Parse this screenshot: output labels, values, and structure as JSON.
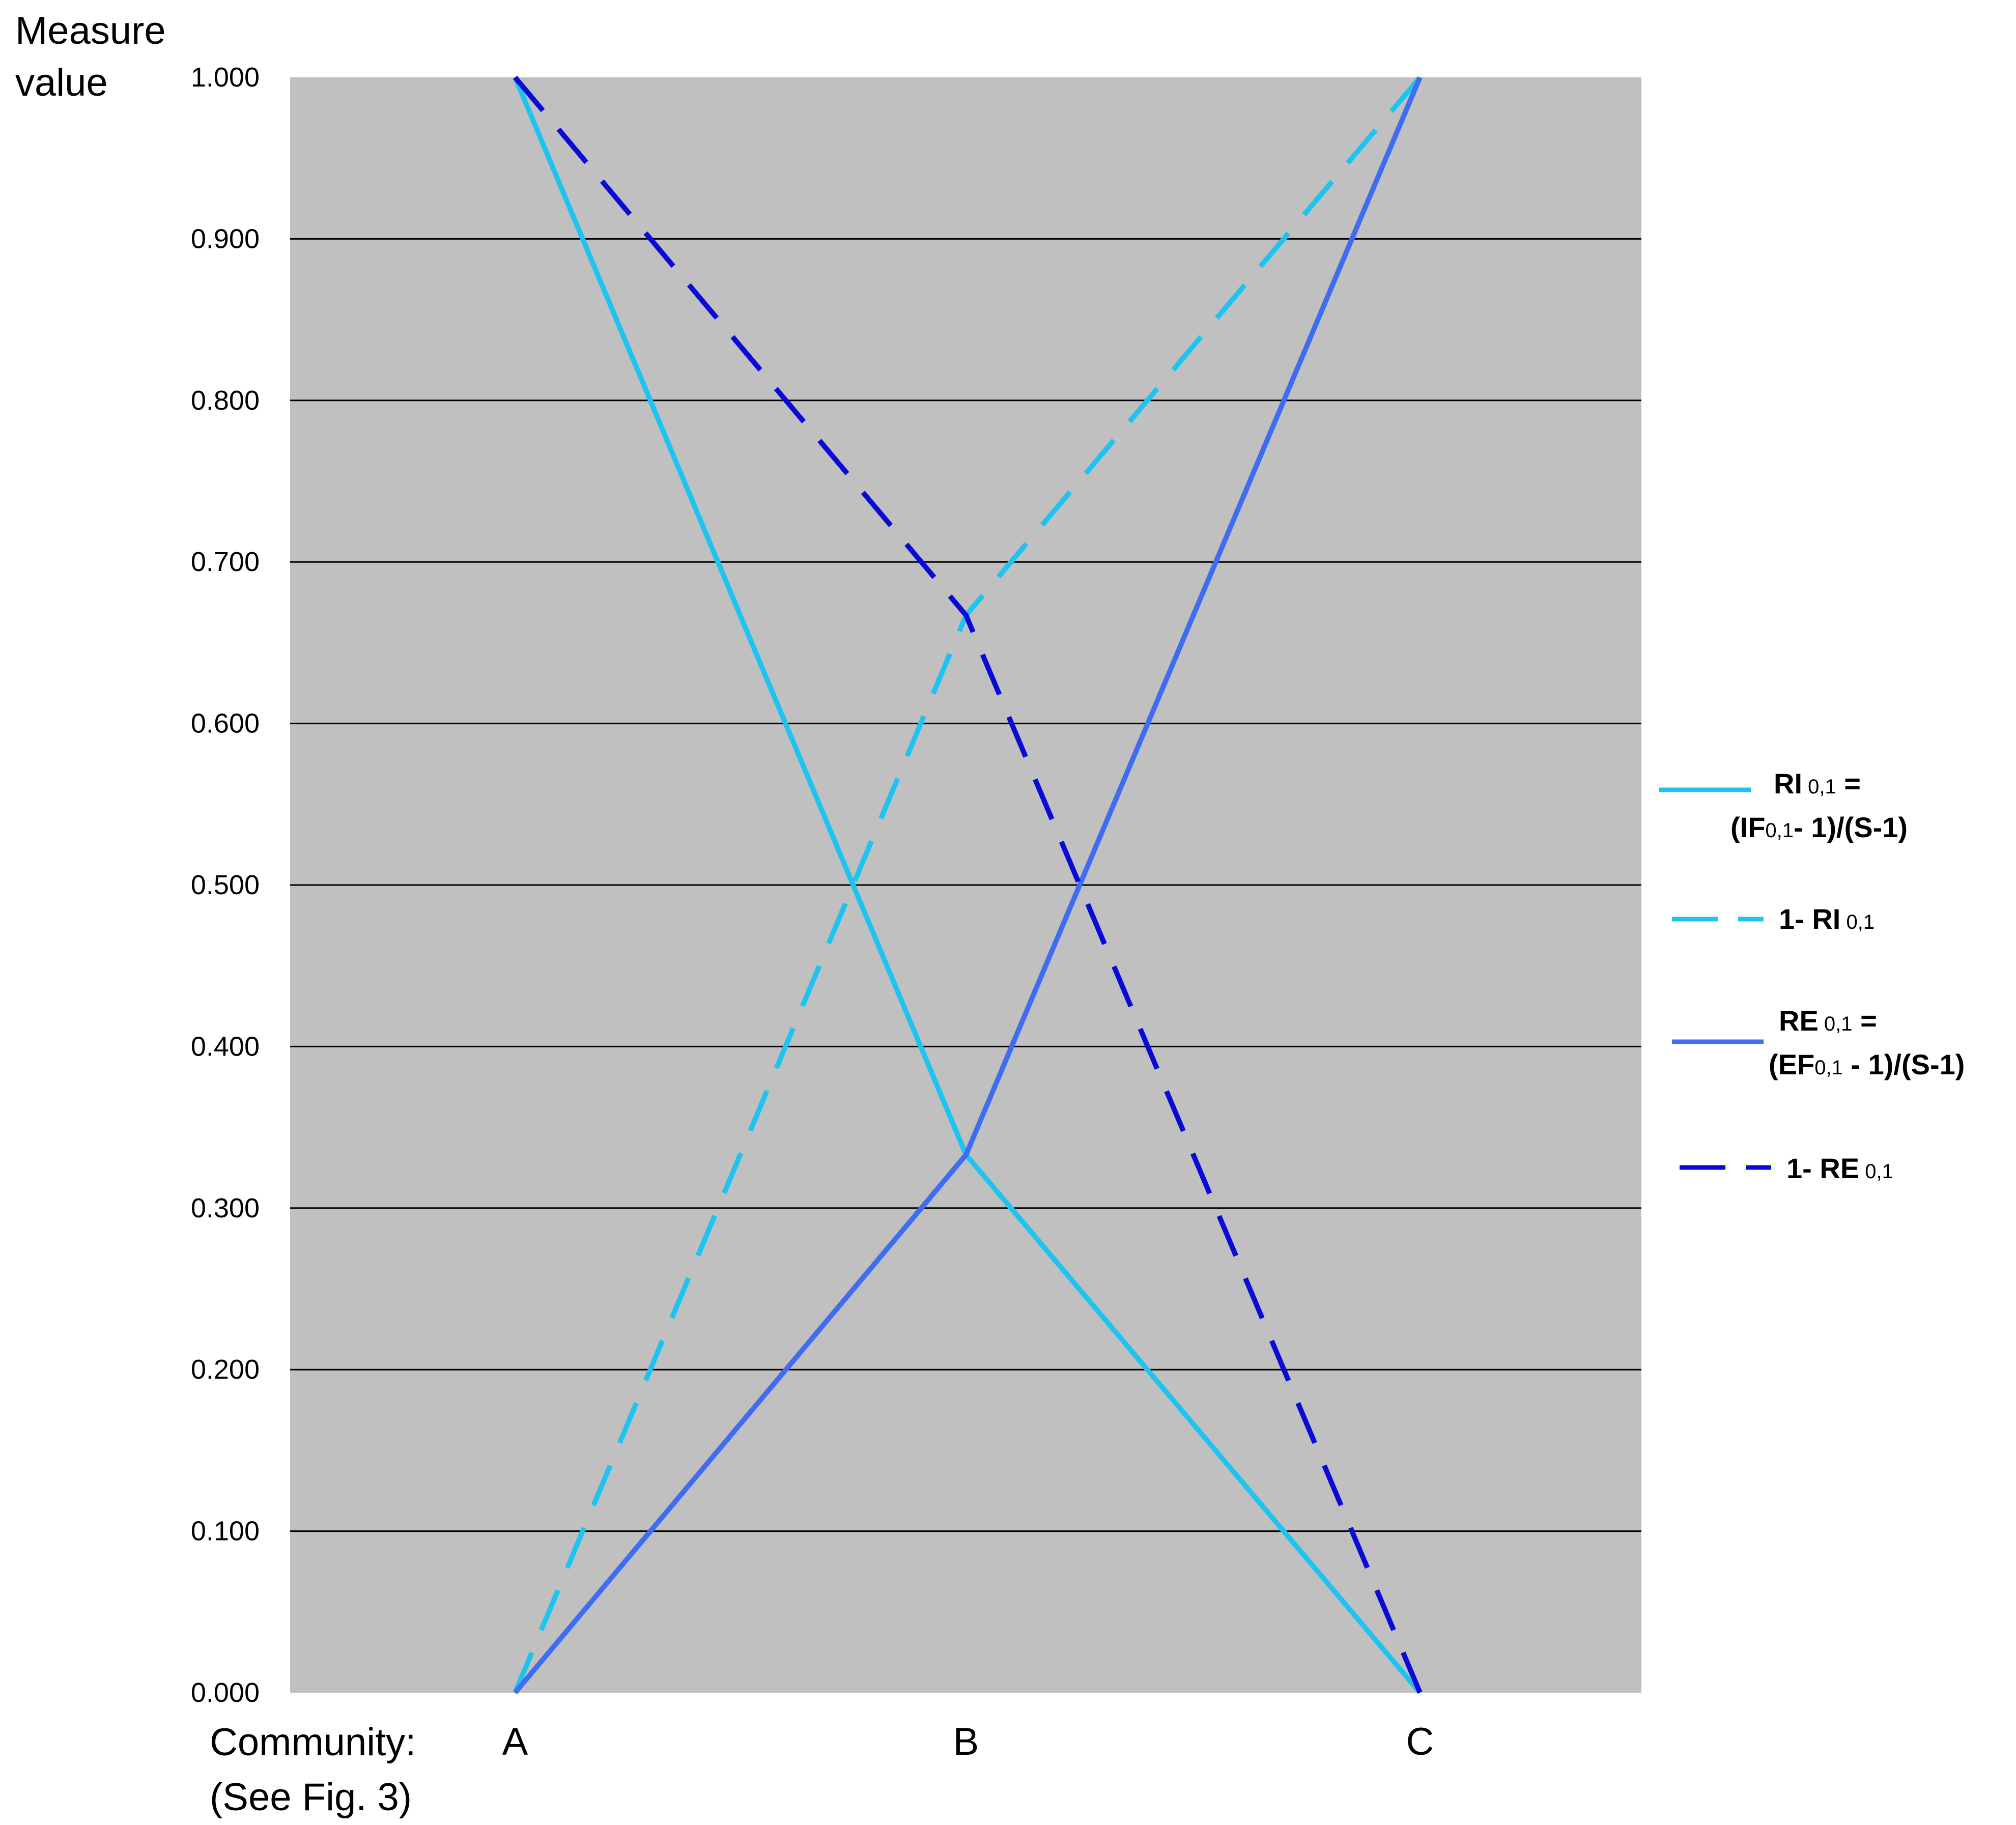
{
  "chart_data": {
    "type": "line",
    "ylabel": "Measure\nvalue",
    "xlabel": "Community:",
    "xlabel_note": "(See Fig. 3)",
    "categories": [
      "A",
      "B",
      "C"
    ],
    "ylim": [
      0,
      1
    ],
    "yticks": [
      "0.000",
      "0.100",
      "0.200",
      "0.300",
      "0.400",
      "0.500",
      "0.600",
      "0.700",
      "0.800",
      "0.900",
      "1.000"
    ],
    "grid": true,
    "legend_position": "right",
    "series": [
      {
        "key": "ri",
        "values": [
          1.0,
          0.333,
          0.0
        ],
        "color": "#1ec3f0",
        "dash": "solid"
      },
      {
        "key": "one_minus_ri",
        "values": [
          0.0,
          0.667,
          1.0
        ],
        "color": "#1ec3f0",
        "dash": "dashed"
      },
      {
        "key": "re",
        "values": [
          0.0,
          0.333,
          1.0
        ],
        "color": "#3f6cf0",
        "dash": "solid"
      },
      {
        "key": "one_minus_re",
        "values": [
          1.0,
          0.667,
          0.0
        ],
        "color": "#0a0ad6",
        "dash": "dashed"
      }
    ],
    "legend": {
      "ri": {
        "line1_main": "RI",
        "line1_sub": "0,1",
        "line1_end": " =",
        "line2_pre": "(IF",
        "line2_sub": "0,1",
        "line2_end": "- 1)/(S-1)"
      },
      "one_minus_ri": {
        "pre": "1-  RI",
        "sub": "0,1"
      },
      "re": {
        "line1_main": "RE",
        "line1_sub": "0,1",
        "line1_end": " =",
        "line2_pre": "(EF",
        "line2_sub": "0,1",
        "line2_end": " - 1)/(S-1)"
      },
      "one_minus_re": {
        "pre": "1-  RE",
        "sub": "0,1"
      }
    },
    "plot_bg": "#c0c0c0"
  }
}
